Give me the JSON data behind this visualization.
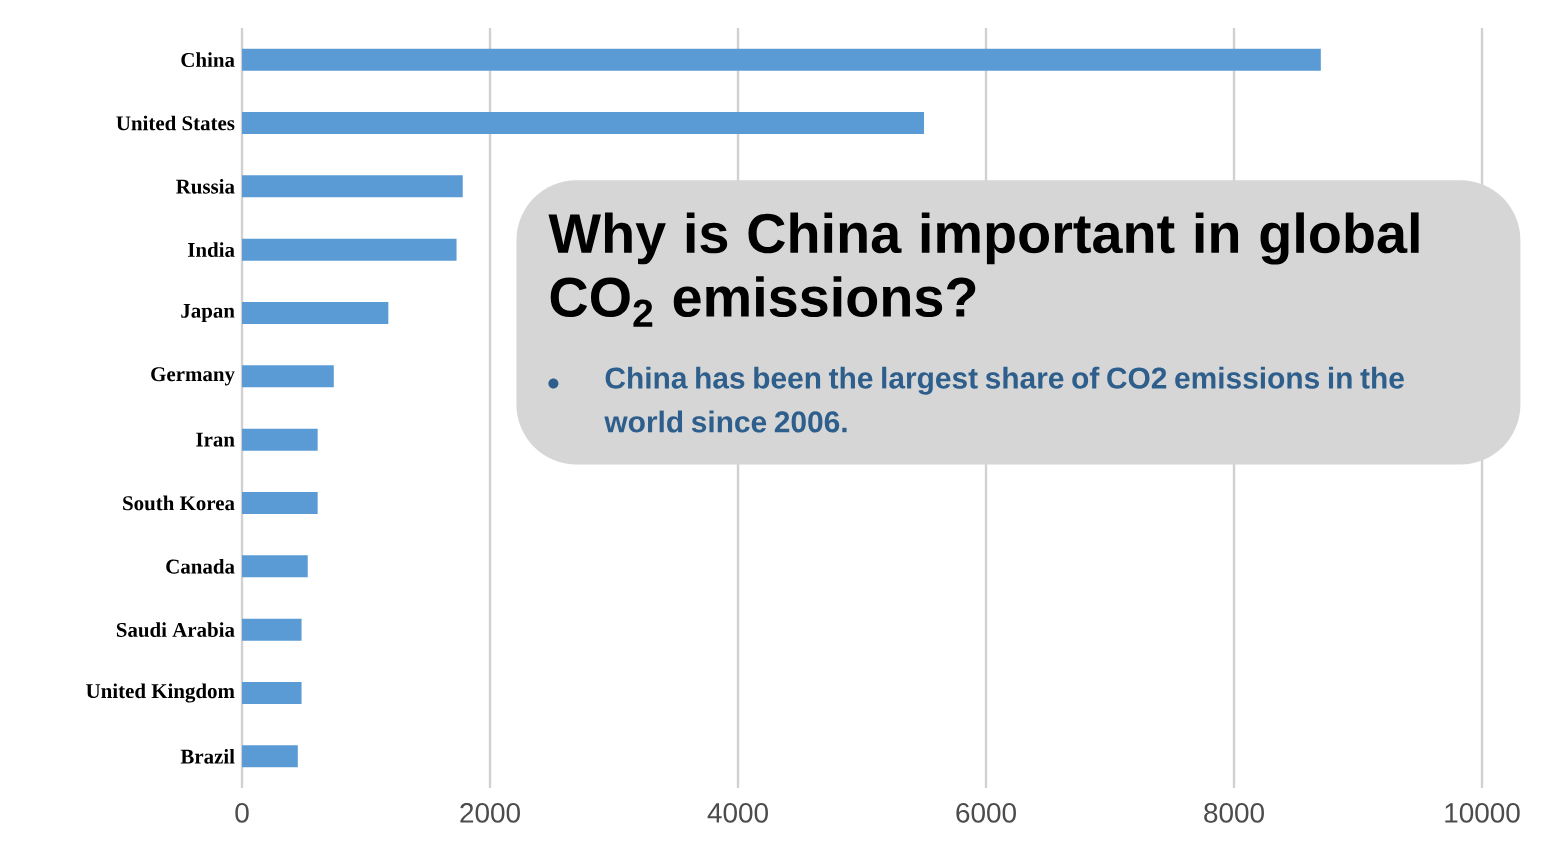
{
  "chart_data": {
    "type": "bar",
    "orientation": "horizontal",
    "categories": [
      "China",
      "United States",
      "Russia",
      "India",
      "Japan",
      "Germany",
      "Iran",
      "South Korea",
      "Canada",
      "Saudi Arabia",
      "United Kingdom",
      "Brazil"
    ],
    "values": [
      8700,
      5500,
      1780,
      1730,
      1180,
      740,
      610,
      610,
      530,
      480,
      480,
      450
    ],
    "color": "#5b9bd5",
    "xlim": [
      0,
      10000
    ],
    "xticks": [
      0,
      2000,
      4000,
      6000,
      8000,
      10000
    ],
    "grid": "x",
    "annotations": [
      "Why is China important in global CO$_{2}$ emissions?",
      "China has been the largest share of CO2 emissions in the world since 2006."
    ]
  }
}
